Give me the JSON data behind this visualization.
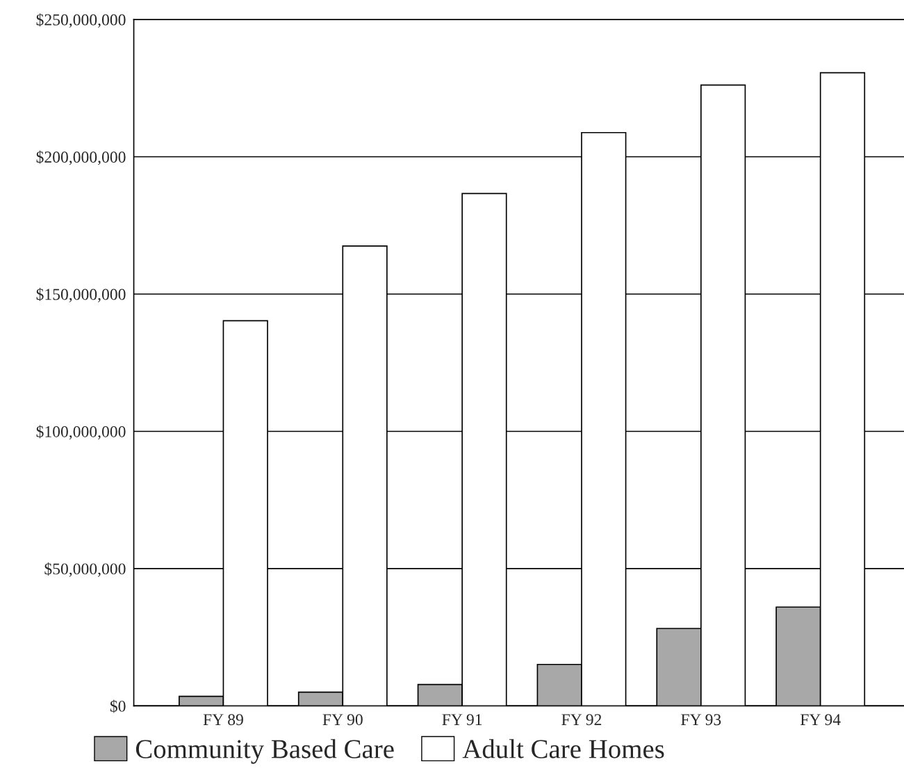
{
  "chart_data": {
    "type": "bar",
    "categories": [
      "FY 89",
      "FY 90",
      "FY 91",
      "FY 92",
      "FY 93",
      "FY 94"
    ],
    "series": [
      {
        "name": "Community Based Care",
        "color": "#a8a8a8",
        "values": [
          3500000,
          5000000,
          7800000,
          15100000,
          28200000,
          36000000
        ]
      },
      {
        "name": "Adult Care Homes",
        "color": "#ffffff",
        "values": [
          140300000,
          167500000,
          186600000,
          208800000,
          226100000,
          230600000
        ]
      }
    ],
    "ylim": [
      0,
      250000000
    ],
    "yticks": [
      {
        "value": 0,
        "label": "$0"
      },
      {
        "value": 50000000,
        "label": "$50,000,000"
      },
      {
        "value": 100000000,
        "label": "$100,000,000"
      },
      {
        "value": 150000000,
        "label": "$150,000,000"
      },
      {
        "value": 200000000,
        "label": "$200,000,000"
      },
      {
        "value": 250000000,
        "label": "$250,000,000"
      }
    ],
    "grid": "y",
    "legend": "bottom"
  }
}
